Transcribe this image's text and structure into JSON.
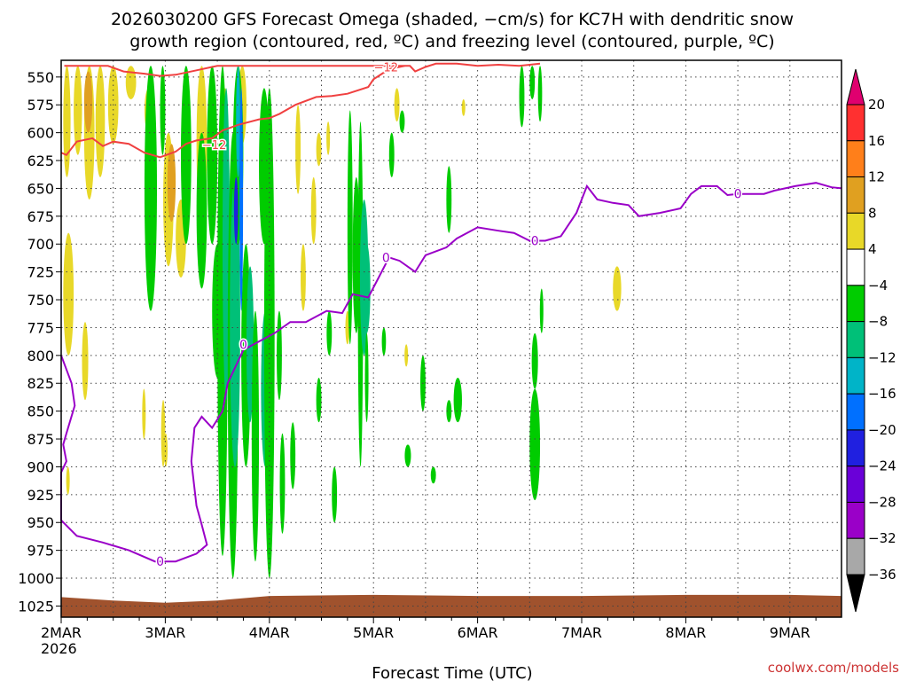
{
  "chart_data": {
    "type": "heatmap",
    "title_line1": "2026030200 GFS Forecast Omega (shaded, −cm/s) for KC7H with dendritic snow",
    "title_line2": "growth region (contoured, red, ºC) and freezing level (contoured, purple, ºC)",
    "xlabel": "Forecast Time (UTC)",
    "credit": "coolwx.com/models",
    "x_ticks": [
      {
        "day": 0,
        "label": "2MAR",
        "sub": "2026"
      },
      {
        "day": 1,
        "label": "3MAR"
      },
      {
        "day": 2,
        "label": "4MAR"
      },
      {
        "day": 3,
        "label": "5MAR"
      },
      {
        "day": 4,
        "label": "6MAR"
      },
      {
        "day": 5,
        "label": "7MAR"
      },
      {
        "day": 6,
        "label": "8MAR"
      },
      {
        "day": 7,
        "label": "9MAR"
      }
    ],
    "xlim_days": [
      0,
      7.5
    ],
    "ylim_hpa": [
      1035,
      535
    ],
    "y_ticks": [
      550,
      575,
      600,
      625,
      650,
      675,
      700,
      725,
      750,
      775,
      800,
      825,
      850,
      875,
      900,
      925,
      950,
      975,
      1000,
      1025
    ],
    "grid": true,
    "colorbar": {
      "labels": [
        "20",
        "16",
        "12",
        "8",
        "4",
        "−4",
        "−8",
        "−12",
        "−16",
        "−20",
        "−24",
        "−28",
        "−32",
        "−36"
      ],
      "colors": [
        "#e0006f",
        "#ff3030",
        "#ff7f1a",
        "#e0a020",
        "#e8d828",
        "#ffffff",
        "#00cc00",
        "#00c078",
        "#00b4c8",
        "#0070ff",
        "#2020e0",
        "#6a00d8",
        "#9a00c8",
        "#a8a8a8",
        "#000000"
      ]
    },
    "dgz_contour_label": "−12",
    "freezing_label": "0",
    "series": [
      {
        "contour": "dgz_top",
        "points": [
          [
            0.03,
            540
          ],
          [
            0.2,
            540
          ],
          [
            0.45,
            540
          ],
          [
            0.6,
            545
          ],
          [
            0.8,
            547
          ],
          [
            0.95,
            549
          ],
          [
            1.1,
            548
          ],
          [
            1.3,
            544
          ],
          [
            1.45,
            541
          ],
          [
            1.5,
            540
          ],
          [
            3.35,
            540
          ],
          [
            3.4,
            545
          ],
          [
            3.5,
            541
          ],
          [
            3.6,
            538
          ],
          [
            3.8,
            538
          ],
          [
            4.0,
            540
          ],
          [
            4.2,
            539
          ],
          [
            4.4,
            540
          ],
          [
            4.6,
            538
          ]
        ]
      },
      {
        "contour": "dgz_bottom",
        "points": [
          [
            0,
            618
          ],
          [
            0.05,
            620
          ],
          [
            0.15,
            608
          ],
          [
            0.3,
            605
          ],
          [
            0.4,
            612
          ],
          [
            0.5,
            608
          ],
          [
            0.65,
            610
          ],
          [
            0.8,
            618
          ],
          [
            0.95,
            622
          ],
          [
            1.1,
            617
          ],
          [
            1.2,
            610
          ],
          [
            1.3,
            607
          ],
          [
            1.45,
            605
          ],
          [
            1.55,
            598
          ],
          [
            1.7,
            593
          ],
          [
            1.9,
            588
          ],
          [
            2.0,
            587
          ],
          [
            2.1,
            583
          ],
          [
            2.25,
            575
          ],
          [
            2.45,
            568
          ],
          [
            2.6,
            567
          ],
          [
            2.75,
            565
          ],
          [
            2.95,
            559
          ],
          [
            3.0,
            552
          ],
          [
            3.15,
            543
          ],
          [
            3.3,
            540
          ]
        ]
      },
      {
        "contour": "freezing_level",
        "points": [
          [
            0,
            800
          ],
          [
            0.1,
            825
          ],
          [
            0.13,
            845
          ],
          [
            0.05,
            870
          ],
          [
            0.02,
            880
          ],
          [
            0.05,
            895
          ],
          [
            0,
            905
          ],
          [
            0,
            948
          ],
          [
            0.15,
            962
          ],
          [
            0.4,
            968
          ],
          [
            0.65,
            975
          ],
          [
            0.9,
            985
          ],
          [
            1.1,
            985
          ],
          [
            1.3,
            978
          ],
          [
            1.4,
            970
          ],
          [
            1.35,
            952
          ],
          [
            1.3,
            935
          ],
          [
            1.25,
            895
          ],
          [
            1.28,
            865
          ],
          [
            1.35,
            855
          ],
          [
            1.45,
            865
          ],
          [
            1.55,
            850
          ],
          [
            1.6,
            825
          ],
          [
            1.75,
            795
          ],
          [
            1.85,
            790
          ],
          [
            2.05,
            780
          ],
          [
            2.2,
            770
          ],
          [
            2.35,
            770
          ],
          [
            2.55,
            760
          ],
          [
            2.7,
            762
          ],
          [
            2.8,
            745
          ],
          [
            2.95,
            748
          ],
          [
            3.05,
            730
          ],
          [
            3.15,
            712
          ],
          [
            3.25,
            715
          ],
          [
            3.4,
            725
          ],
          [
            3.5,
            710
          ],
          [
            3.7,
            703
          ],
          [
            3.8,
            695
          ],
          [
            4.0,
            685
          ],
          [
            4.2,
            688
          ],
          [
            4.35,
            690
          ],
          [
            4.5,
            697
          ],
          [
            4.65,
            697
          ],
          [
            4.8,
            693
          ],
          [
            4.95,
            672
          ],
          [
            5.05,
            648
          ],
          [
            5.15,
            660
          ],
          [
            5.3,
            663
          ],
          [
            5.45,
            665
          ],
          [
            5.55,
            675
          ],
          [
            5.75,
            672
          ],
          [
            5.95,
            668
          ],
          [
            6.05,
            655
          ],
          [
            6.15,
            648
          ],
          [
            6.3,
            648
          ],
          [
            6.4,
            656
          ],
          [
            6.5,
            655
          ],
          [
            6.75,
            655
          ],
          [
            6.85,
            652
          ],
          [
            7.05,
            648
          ],
          [
            7.25,
            645
          ],
          [
            7.4,
            649
          ],
          [
            7.5,
            650
          ]
        ]
      }
    ]
  }
}
